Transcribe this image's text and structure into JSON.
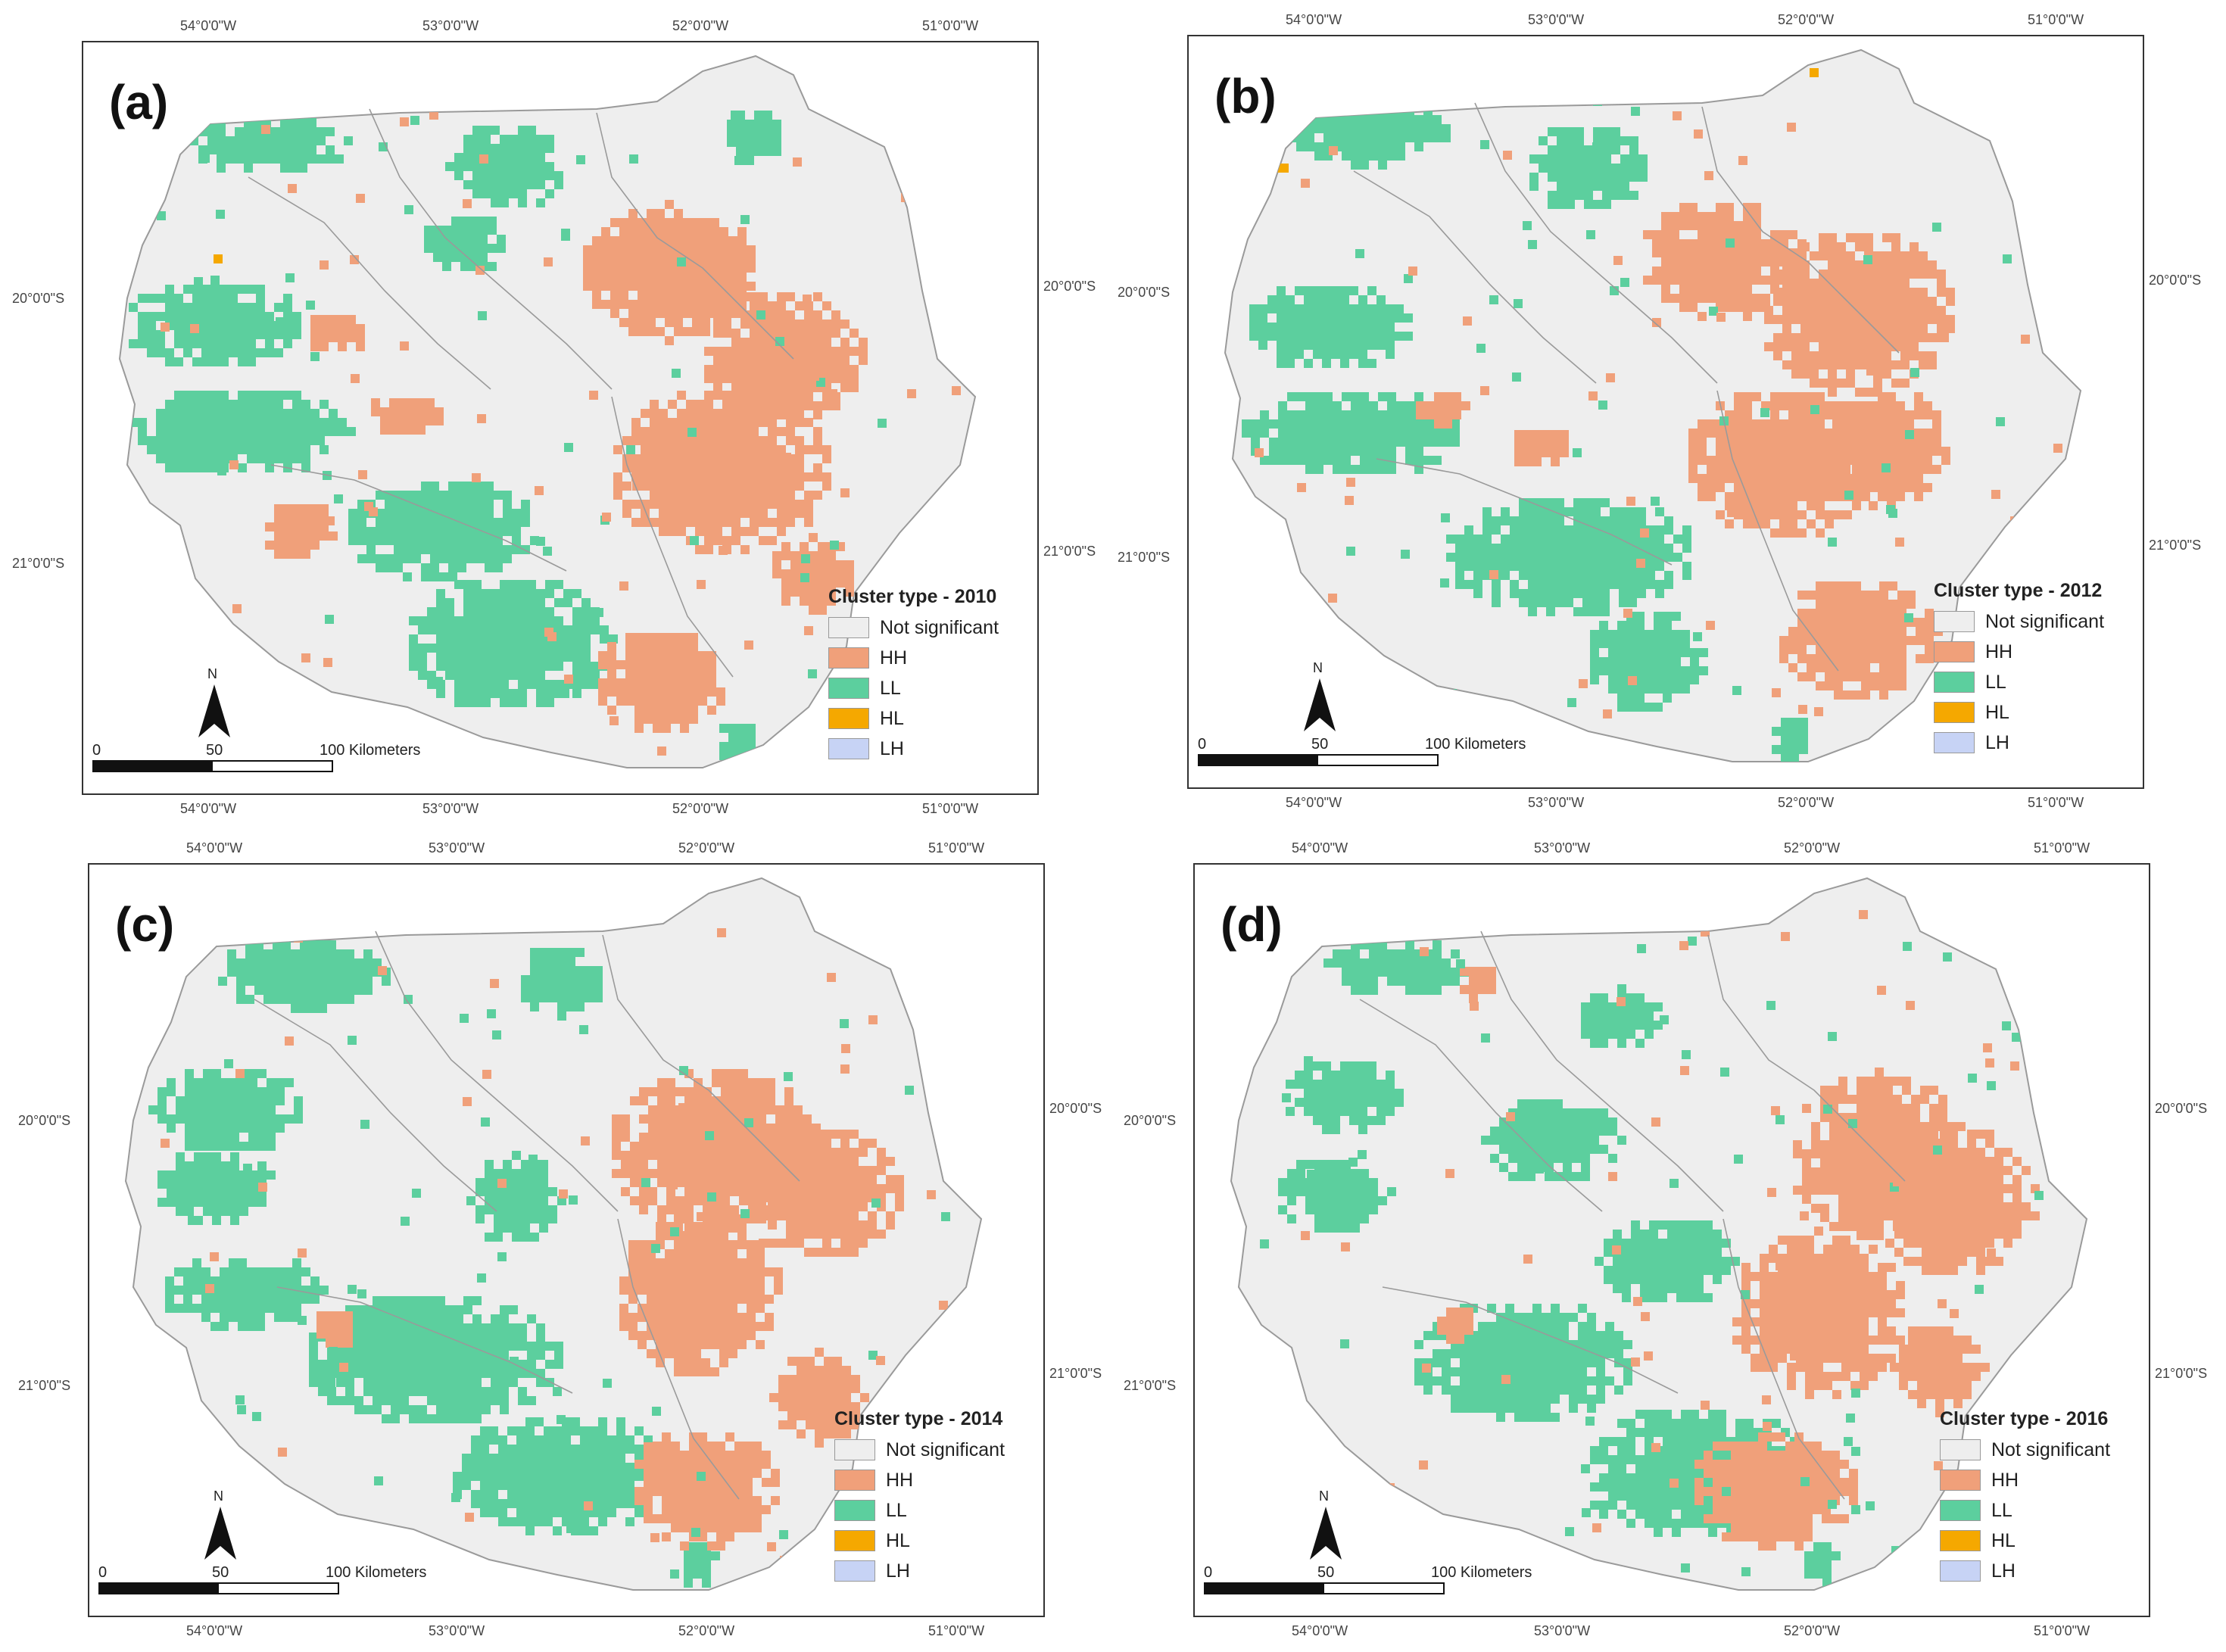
{
  "colors": {
    "not_significant": "#eeeeee",
    "hh": "#f0a07a",
    "ll": "#5ccf9e",
    "hl": "#f5a800",
    "lh": "#c7d3f5",
    "boundary": "#9a9a9a"
  },
  "ticks": {
    "lon": [
      "54°0'0\"W",
      "53°0'0\"W",
      "52°0'0\"W",
      "51°0'0\"W"
    ],
    "lat": [
      "20°0'0\"S",
      "21°0'0\"S"
    ]
  },
  "legend_items": [
    {
      "label": "Not significant",
      "color_key": "not_significant"
    },
    {
      "label": "HH",
      "color_key": "hh"
    },
    {
      "label": "LL",
      "color_key": "ll"
    },
    {
      "label": "HL",
      "color_key": "hl"
    },
    {
      "label": "LH",
      "color_key": "lh"
    }
  ],
  "scale": {
    "zero": "0",
    "mid": "50",
    "end": "100 Kilometers"
  },
  "north_label": "N",
  "panels": [
    {
      "label": "(a)",
      "legend_title": "Cluster type - 2010"
    },
    {
      "label": "(b)",
      "legend_title": "Cluster type - 2012"
    },
    {
      "label": "(c)",
      "legend_title": "Cluster type - 2014"
    },
    {
      "label": "(d)",
      "legend_title": "Cluster type - 2016"
    }
  ]
}
